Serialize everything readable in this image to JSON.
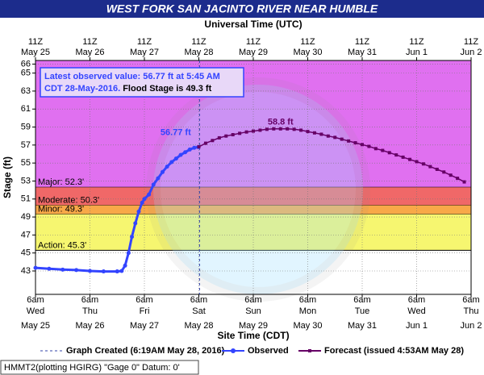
{
  "chart_data": {
    "type": "hydrograph",
    "title": "WEST FORK SAN JACINTO RIVER NEAR HUMBLE",
    "x2_label": "Universal Time (UTC)",
    "x_label": "Site Time (CDT)",
    "y_label": "Stage (ft)",
    "xlim": [
      "2016-05-25T06:00",
      "2016-06-02T06:00"
    ],
    "ylim": [
      40.4,
      66.4
    ],
    "yticks": [
      43,
      45,
      47,
      49,
      51,
      53,
      55,
      57,
      59,
      61,
      63,
      65,
      66
    ],
    "xticks": [
      {
        "value": "2016-05-25T06:00",
        "label": [
          "6am",
          "Wed",
          "May 25"
        ]
      },
      {
        "value": "2016-05-26T06:00",
        "label": [
          "6am",
          "Thu",
          "May 26"
        ]
      },
      {
        "value": "2016-05-27T06:00",
        "label": [
          "6am",
          "Fri",
          "May 27"
        ]
      },
      {
        "value": "2016-05-28T06:00",
        "label": [
          "6am",
          "Sat",
          "May 28"
        ]
      },
      {
        "value": "2016-05-29T06:00",
        "label": [
          "6am",
          "Sun",
          "May 29"
        ]
      },
      {
        "value": "2016-05-30T06:00",
        "label": [
          "6am",
          "Mon",
          "May 30"
        ]
      },
      {
        "value": "2016-05-31T06:00",
        "label": [
          "6am",
          "Tue",
          "May 31"
        ]
      },
      {
        "value": "2016-06-01T06:00",
        "label": [
          "6am",
          "Wed",
          "Jun 1"
        ]
      },
      {
        "value": "2016-06-02T06:00",
        "label": [
          "6am",
          "Thu",
          "Jun 2"
        ]
      }
    ],
    "x2ticks": [
      {
        "value": "2016-05-25T06:00",
        "label": [
          "11Z",
          "May 25"
        ]
      },
      {
        "value": "2016-05-26T06:00",
        "label": [
          "11Z",
          "May 26"
        ]
      },
      {
        "value": "2016-05-27T06:00",
        "label": [
          "11Z",
          "May 27"
        ]
      },
      {
        "value": "2016-05-28T06:00",
        "label": [
          "11Z",
          "May 28"
        ]
      },
      {
        "value": "2016-05-29T06:00",
        "label": [
          "11Z",
          "May 29"
        ]
      },
      {
        "value": "2016-05-30T06:00",
        "label": [
          "11Z",
          "May 30"
        ]
      },
      {
        "value": "2016-05-31T06:00",
        "label": [
          "11Z",
          "May 31"
        ]
      },
      {
        "value": "2016-06-01T06:00",
        "label": [
          "11Z",
          "Jun 1"
        ]
      },
      {
        "value": "2016-06-02T06:00",
        "label": [
          "11Z",
          "Jun 2"
        ]
      }
    ],
    "grid": true,
    "flood_categories": [
      {
        "label": "Major: 52.3'",
        "value": 52.3,
        "color": "#e070f0"
      },
      {
        "label": "Moderate: 50.3'",
        "value": 50.3,
        "color": "#f06868"
      },
      {
        "label": "Minor: 49.3'",
        "value": 49.3,
        "color": "#f8a848"
      },
      {
        "label": "Action: 45.3'",
        "value": 45.3,
        "color": "#f6f670"
      }
    ],
    "graph_created": {
      "x": "2016-05-28T06:19",
      "name": "Graph Created (6:19AM May 28, 2016)"
    },
    "series": [
      {
        "name": "Observed",
        "color": "#3344ff",
        "marker": "circle",
        "x": [
          "2016-05-25T06:00",
          "2016-05-25T12:00",
          "2016-05-25T18:00",
          "2016-05-26T00:00",
          "2016-05-26T06:00",
          "2016-05-26T12:00",
          "2016-05-26T18:00",
          "2016-05-26T20:00",
          "2016-05-26T21:30",
          "2016-05-26T23:00",
          "2016-05-27T00:30",
          "2016-05-27T02:00",
          "2016-05-27T03:30",
          "2016-05-27T05:00",
          "2016-05-27T06:00",
          "2016-05-27T08:00",
          "2016-05-27T10:00",
          "2016-05-27T12:00",
          "2016-05-27T14:00",
          "2016-05-27T16:00",
          "2016-05-27T18:00",
          "2016-05-27T20:00",
          "2016-05-27T22:00",
          "2016-05-28T00:00",
          "2016-05-28T02:00",
          "2016-05-28T04:00",
          "2016-05-28T05:45"
        ],
        "values": [
          43.35,
          43.25,
          43.15,
          43.1,
          43.0,
          42.95,
          42.95,
          43.0,
          43.6,
          45.0,
          46.8,
          48.3,
          49.6,
          50.6,
          51.0,
          51.5,
          52.6,
          53.3,
          54.0,
          54.6,
          55.1,
          55.5,
          55.9,
          56.2,
          56.5,
          56.7,
          56.77
        ]
      },
      {
        "name": "Forecast (issued 4:53AM May 28)",
        "color": "#660066",
        "marker": "square",
        "x": [
          "2016-05-28T06:00",
          "2016-05-28T09:00",
          "2016-05-28T12:00",
          "2016-05-28T15:00",
          "2016-05-28T18:00",
          "2016-05-28T21:00",
          "2016-05-29T00:00",
          "2016-05-29T03:00",
          "2016-05-29T06:00",
          "2016-05-29T09:00",
          "2016-05-29T12:00",
          "2016-05-29T15:00",
          "2016-05-29T18:00",
          "2016-05-29T21:00",
          "2016-05-30T00:00",
          "2016-05-30T03:00",
          "2016-05-30T06:00",
          "2016-05-30T09:00",
          "2016-05-30T12:00",
          "2016-05-30T15:00",
          "2016-05-30T18:00",
          "2016-05-30T21:00",
          "2016-05-31T00:00",
          "2016-05-31T03:00",
          "2016-05-31T06:00",
          "2016-05-31T09:00",
          "2016-05-31T12:00",
          "2016-05-31T15:00",
          "2016-05-31T18:00",
          "2016-05-31T21:00",
          "2016-06-01T00:00",
          "2016-06-01T03:00",
          "2016-06-01T06:00",
          "2016-06-01T09:00",
          "2016-06-01T12:00",
          "2016-06-01T15:00",
          "2016-06-01T18:00",
          "2016-06-01T21:00",
          "2016-06-02T00:00",
          "2016-06-02T03:00"
        ],
        "values": [
          56.8,
          57.2,
          57.5,
          57.8,
          58.0,
          58.15,
          58.3,
          58.45,
          58.55,
          58.65,
          58.75,
          58.8,
          58.8,
          58.8,
          58.75,
          58.65,
          58.5,
          58.35,
          58.2,
          58.0,
          57.85,
          57.65,
          57.45,
          57.25,
          57.05,
          56.85,
          56.6,
          56.4,
          56.15,
          55.9,
          55.65,
          55.4,
          55.15,
          54.9,
          54.6,
          54.3,
          54.0,
          53.65,
          53.3,
          52.9
        ]
      }
    ],
    "annotations": [
      {
        "text": "56.77 ft",
        "x": "2016-05-28T05:45",
        "y": 56.77,
        "color": "#3344ff"
      },
      {
        "text": "58.8 ft",
        "x": "2016-05-29T18:00",
        "y": 58.8,
        "color": "#660066"
      }
    ],
    "latest_box": {
      "line1": "Latest observed value: 56.77 ft at 5:45 AM",
      "line2a": "CDT 28-May-2016.",
      "line2b": " Flood Stage is 49.3 ft"
    },
    "footer": "HMMT2(plotting HGIRG) \"Gage 0\" Datum: 0'"
  }
}
